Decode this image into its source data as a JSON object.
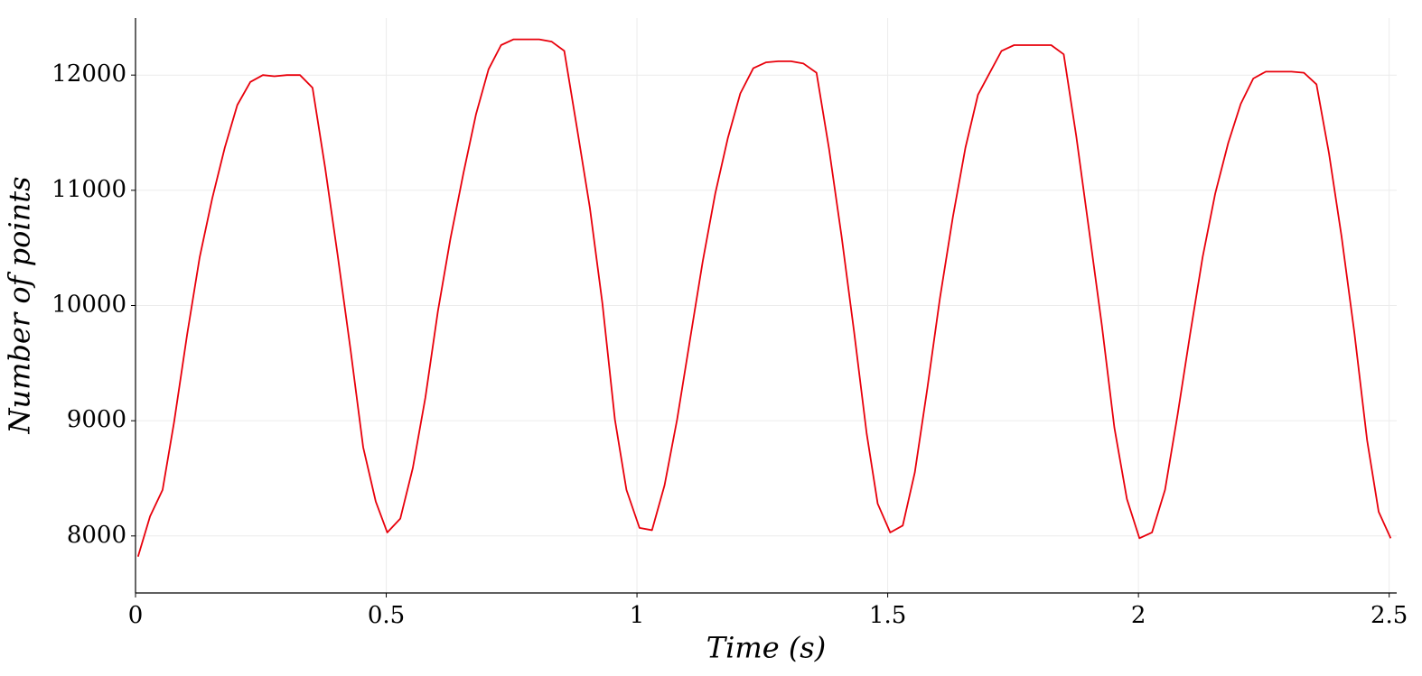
{
  "chart_data": {
    "type": "line",
    "x_label": "Time (s)",
    "y_label": "Number of points",
    "xlim": [
      0,
      2.515
    ],
    "ylim": [
      7505,
      12495
    ],
    "xticks": [
      0,
      0.5,
      1,
      1.5,
      2,
      2.5
    ],
    "yticks": [
      8000,
      9000,
      10000,
      11000,
      12000
    ],
    "grid": true,
    "series": [
      {
        "color": "#e8000b",
        "x": [
          0.005,
          0.029,
          0.054,
          0.077,
          0.103,
          0.128,
          0.153,
          0.178,
          0.203,
          0.229,
          0.254,
          0.277,
          0.302,
          0.328,
          0.353,
          0.378,
          0.403,
          0.429,
          0.454,
          0.479,
          0.502,
          0.528,
          0.553,
          0.578,
          0.603,
          0.628,
          0.654,
          0.679,
          0.704,
          0.729,
          0.754,
          0.78,
          0.805,
          0.83,
          0.855,
          0.88,
          0.906,
          0.931,
          0.956,
          0.979,
          1.005,
          1.03,
          1.055,
          1.08,
          1.106,
          1.131,
          1.156,
          1.181,
          1.206,
          1.232,
          1.257,
          1.282,
          1.307,
          1.332,
          1.358,
          1.383,
          1.408,
          1.433,
          1.458,
          1.48,
          1.505,
          1.53,
          1.554,
          1.579,
          1.604,
          1.63,
          1.655,
          1.68,
          1.701,
          1.727,
          1.752,
          1.777,
          1.802,
          1.826,
          1.851,
          1.876,
          1.901,
          1.927,
          1.952,
          1.977,
          2.002,
          2.027,
          2.053,
          2.078,
          2.103,
          2.128,
          2.153,
          2.179,
          2.204,
          2.229,
          2.254,
          2.279,
          2.305,
          2.33,
          2.355,
          2.38,
          2.405,
          2.431,
          2.456,
          2.479,
          2.503
        ],
        "values": [
          7820,
          8170,
          8400,
          8990,
          9750,
          10420,
          10930,
          11370,
          11740,
          11940,
          12000,
          11990,
          12000,
          12000,
          11890,
          11200,
          10440,
          9610,
          8770,
          8300,
          8030,
          8150,
          8590,
          9200,
          9950,
          10580,
          11150,
          11660,
          12050,
          12260,
          12310,
          12310,
          12310,
          12290,
          12210,
          11550,
          10850,
          10020,
          9010,
          8400,
          8070,
          8050,
          8440,
          9010,
          9710,
          10380,
          10970,
          11450,
          11840,
          12060,
          12110,
          12120,
          12120,
          12100,
          12020,
          11360,
          10600,
          9770,
          8890,
          8280,
          8030,
          8090,
          8550,
          9280,
          10060,
          10770,
          11370,
          11830,
          12000,
          12210,
          12260,
          12260,
          12260,
          12260,
          12180,
          11470,
          10670,
          9830,
          8940,
          8320,
          7980,
          8030,
          8400,
          9050,
          9750,
          10420,
          10970,
          11410,
          11750,
          11970,
          12030,
          12030,
          12030,
          12020,
          11920,
          11320,
          10600,
          9750,
          8830,
          8210,
          7980
        ]
      }
    ]
  }
}
